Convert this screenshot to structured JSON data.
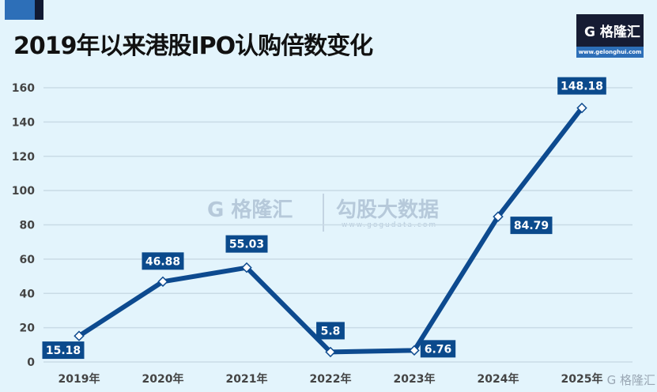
{
  "title": "2019年以来港股IPO认购倍数变化",
  "logo": {
    "brand": "G 格隆汇",
    "url": "www.gelonghui.com"
  },
  "watermark": {
    "left": "G 格隆汇",
    "right": "勾股大数据",
    "sub": "www.gogudata.com",
    "corner": "G 格隆汇"
  },
  "colors": {
    "line": "#0d4a8f",
    "label_bg": "#0b4a8c",
    "background": "#e3f4fc"
  },
  "chart_data": {
    "type": "line",
    "categories": [
      "2019年",
      "2020年",
      "2021年",
      "2022年",
      "2023年",
      "2024年",
      "2025年"
    ],
    "values": [
      15.18,
      46.88,
      55.03,
      5.8,
      6.76,
      84.79,
      148.18
    ],
    "data_labels": [
      "15.18",
      "46.88",
      "55.03",
      "5.8",
      "6.76",
      "84.79",
      "148.18"
    ],
    "ylim": [
      0,
      160
    ],
    "yticks": [
      0,
      20,
      40,
      60,
      80,
      100,
      120,
      140,
      160
    ],
    "grid": true,
    "xlabel": "",
    "ylabel": ""
  }
}
